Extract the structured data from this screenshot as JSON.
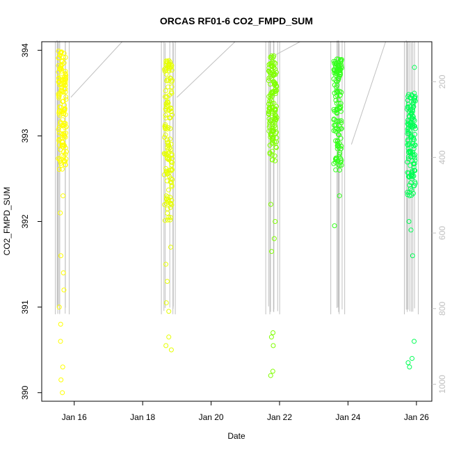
{
  "chart_data": {
    "type": "scatter",
    "title": "ORCAS RF01-6 CO2_FMPD_SUM",
    "xlabel": "Date",
    "ylabel": "CO2_FMPD_SUM",
    "x_ticks": [
      "Jan 16",
      "Jan 18",
      "Jan 20",
      "Jan 22",
      "Jan 24",
      "Jan 26"
    ],
    "x_tick_values": [
      16,
      18,
      20,
      22,
      24,
      26
    ],
    "xlim": [
      15.05,
      26.45
    ],
    "y_ticks": [
      "390",
      "391",
      "392",
      "393",
      "394"
    ],
    "y_tick_values": [
      390,
      391,
      392,
      393,
      394
    ],
    "ylim": [
      389.9,
      394.1
    ],
    "right_axis_ticks": [
      "200",
      "400",
      "600",
      "800",
      "1000"
    ],
    "right_axis_tick_values": [
      200,
      400,
      600,
      800,
      1000
    ],
    "right_axis_range_top_to_bottom": [
      94,
      1045
    ],
    "right_axis_color": "#bfbfbf",
    "grid": false,
    "series": [
      {
        "color": "#ffff00",
        "center": 15.65,
        "half_width": 0.12,
        "dense": [
          392.6,
          394.0
        ],
        "outliers": [
          390.0,
          390.15,
          390.3,
          390.6,
          390.8,
          391.0,
          391.2,
          391.4,
          391.6,
          392.1,
          392.3
        ]
      },
      {
        "color": "#e6ff00",
        "center": 18.75,
        "half_width": 0.12,
        "dense": [
          392.0,
          393.9
        ],
        "outliers": [
          390.5,
          390.55,
          390.65,
          390.95,
          391.05,
          391.3,
          391.5,
          391.7,
          392.3,
          392.6
        ]
      },
      {
        "color": "#80ff00",
        "center": 21.8,
        "half_width": 0.12,
        "dense": [
          392.7,
          393.95
        ],
        "outliers": [
          390.2,
          390.25,
          390.55,
          390.65,
          390.7,
          391.65,
          391.8,
          392.0,
          392.2
        ]
      },
      {
        "color": "#33ff1a",
        "center": 23.7,
        "half_width": 0.12,
        "dense": [
          392.6,
          393.9
        ],
        "outliers": [
          391.95,
          392.3
        ]
      },
      {
        "color": "#00ff55",
        "center": 25.85,
        "half_width": 0.12,
        "dense": [
          392.3,
          393.5
        ],
        "outliers": [
          390.3,
          390.35,
          390.4,
          390.6,
          391.6,
          391.9,
          392.0,
          393.8
        ]
      }
    ],
    "altitude_line_color": "#c0c0c0"
  }
}
